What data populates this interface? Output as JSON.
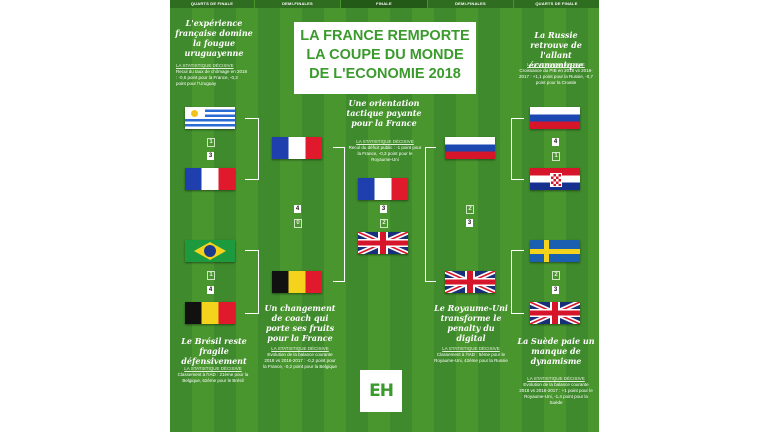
{
  "rounds": {
    "quarter_left": "QUARTS DE FINALE",
    "semi_left": "DEMI-FINALES",
    "final": "FINALE",
    "semi_right": "DEMI-FINALES",
    "quarter_right": "QUARTS DE FINALE"
  },
  "title": {
    "line1": "LA FRANCE REMPORTE",
    "line2": "LA COUPE DU MONDE",
    "line3": "DE L'ECONOMIE 2018"
  },
  "stat_heading": "LA STATISTIQUE DÉCISIVE",
  "blocks": {
    "qf_top_left": {
      "headline": "L'expérience française domine la fougue uruguayenne",
      "stat": "Recul du taux de chômage en 2018 : -0,6 point pour la France, -0,3 point pour l'Uruguay"
    },
    "qf_bottom_left": {
      "headline": "Le Brésil reste fragile défensivement",
      "stat": "Classement à l'IAD : 21ème pour la Belgique, 62ème pour le Brésil"
    },
    "sf_left": {
      "headline": "Un changement de coach qui porte ses fruits pour la France",
      "stat": "Evolution de la balance courante 2018 vs 2016-2017 : -0,2 point pour la France, -0,2 point pour la Belgique"
    },
    "final": {
      "headline": "Une orientation tactique payante pour la France",
      "stat": "Recul du déficit public : -1 point pour la France, -0,3 point pour le Royaume-Uni"
    },
    "sf_right": {
      "headline": "Le Royaume-Uni transforme le penalty du digital",
      "stat": "Classement à l'IAD : 5ème pour le Royaume-Uni, 42ème pour la Russie"
    },
    "qf_top_right": {
      "headline": "La Russie retrouve de l'allant économique",
      "stat": "Croissance du PIB en 2018 vs 2016-2017 : +1,1 point pour la Russie, -0,7 point pour la Croatie"
    },
    "qf_bottom_right": {
      "headline": "La Suède paie un manque de dynamisme",
      "stat": "Evolution de la balance courante 2018 vs 2016-2017 : +1 point pour le Royaume-Uni, -1,4 point pour la Suède"
    }
  },
  "scores": {
    "uruguay": "1",
    "france_qf": "3",
    "brazil": "1",
    "belgium_qf": "4",
    "france_sf": "4",
    "belgium_sf": "0",
    "france_final": "3",
    "uk_final_left": "2",
    "russia_sf": "2",
    "uk_sf": "3",
    "russia_qf": "4",
    "croatia": "1",
    "sweden": "2",
    "uk_qf": "3"
  },
  "logo_text": "EH",
  "colors": {
    "pitch_dark": "#3f8a2c",
    "pitch_light": "#49962f",
    "title_green": "#3a9a2c"
  }
}
